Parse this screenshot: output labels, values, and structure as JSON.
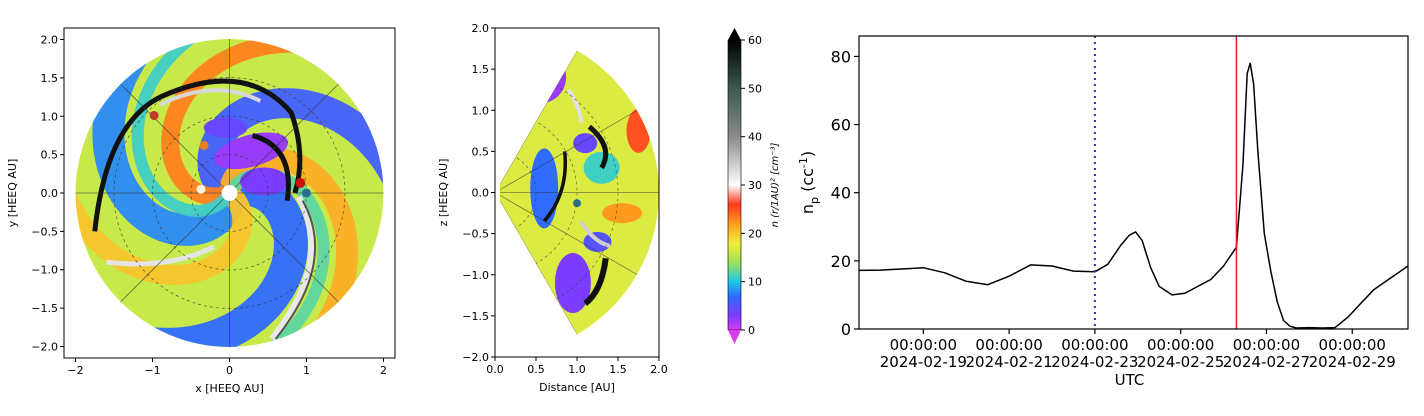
{
  "chart_data": [
    {
      "type": "heatmap",
      "title": "",
      "xlabel": "x [HEEQ AU]",
      "ylabel": "y [HEEQ AU]",
      "xlim": [
        -2.15,
        2.15
      ],
      "ylim": [
        -2.15,
        2.15
      ],
      "xticks": [
        "−2",
        "−1",
        "0",
        "1",
        "2"
      ],
      "xtick_values": [
        -2,
        -1,
        0,
        1,
        2
      ],
      "yticks": [
        "−2.0",
        "−1.5",
        "−1.0",
        "−0.5",
        "0.0",
        "0.5",
        "1.0",
        "1.5",
        "2.0"
      ],
      "ytick_values": [
        -2,
        -1.5,
        -1,
        -0.5,
        0,
        0.5,
        1,
        1.5,
        2
      ],
      "domain_radius": 2.0,
      "grid": true,
      "markers": [
        {
          "x": -0.37,
          "y": 0.05,
          "color": "#f5f5dc"
        },
        {
          "x": -0.33,
          "y": 0.62,
          "color": "#e67e22"
        },
        {
          "x": -0.98,
          "y": 1.01,
          "color": "#c0392b"
        },
        {
          "x": 0.92,
          "y": 0.13,
          "color": "#cc1111"
        },
        {
          "x": 1.0,
          "y": 0.0,
          "color": "#2a6f8a"
        }
      ]
    },
    {
      "type": "heatmap",
      "title": "",
      "xlabel": "Distance [AU]",
      "ylabel": "z [HEEQ AU]",
      "xlim": [
        0,
        2.0
      ],
      "ylim": [
        -2.0,
        2.0
      ],
      "xticks": [
        "0.0",
        "0.5",
        "1.0",
        "1.5",
        "2.0"
      ],
      "xtick_values": [
        0,
        0.5,
        1,
        1.5,
        2
      ],
      "yticks": [
        "−2.0",
        "−1.5",
        "−1.0",
        "−0.5",
        "0.0",
        "0.5",
        "1.0",
        "1.5",
        "2.0"
      ],
      "ytick_values": [
        -2,
        -1.5,
        -1,
        -0.5,
        0,
        0.5,
        1,
        1.5,
        2
      ],
      "wedge_half_angle_deg": 60,
      "grid": true,
      "markers": [
        {
          "x": 1.0,
          "y": -0.13,
          "color": "#2a6f8a"
        }
      ]
    },
    {
      "type": "colorbar",
      "label": "n (r/1AU)² [cm⁻³]",
      "range": [
        0,
        60
      ],
      "ticks": [
        "0",
        "10",
        "20",
        "30",
        "40",
        "50",
        "60"
      ],
      "tick_values": [
        0,
        10,
        20,
        30,
        40,
        50,
        60
      ],
      "stops": [
        {
          "v": 0,
          "c": "#d83cf0"
        },
        {
          "v": 3,
          "c": "#7a3cff"
        },
        {
          "v": 7,
          "c": "#2f6bff"
        },
        {
          "v": 10,
          "c": "#20c8e8"
        },
        {
          "v": 14,
          "c": "#9ee35a"
        },
        {
          "v": 18,
          "c": "#f1ee3a"
        },
        {
          "v": 22,
          "c": "#ff9a1e"
        },
        {
          "v": 26,
          "c": "#ff3a20"
        },
        {
          "v": 30,
          "c": "#ffffff"
        },
        {
          "v": 40,
          "c": "#8a8a8a"
        },
        {
          "v": 50,
          "c": "#3c5a52"
        },
        {
          "v": 60,
          "c": "#000000"
        }
      ]
    },
    {
      "type": "line",
      "title": "",
      "xlabel": "UTC",
      "ylabel": "n_p (cc⁻¹)",
      "ylabel_main": "n",
      "ylabel_sub": "p",
      "ylabel_rest": " (cc",
      "ylabel_sup": "-1",
      "ylabel_close": ")",
      "x_start": "2024-02-17 12:00",
      "xlim_days": [
        0,
        12.8
      ],
      "ylim": [
        0,
        86
      ],
      "yticks": [
        "0",
        "20",
        "40",
        "60",
        "80"
      ],
      "ytick_values": [
        0,
        20,
        40,
        60,
        80
      ],
      "xticks": [
        {
          "d": 1.5,
          "time": "00:00:00",
          "date": "2024-02-19"
        },
        {
          "d": 3.5,
          "time": "00:00:00",
          "date": "2024-02-21"
        },
        {
          "d": 5.5,
          "time": "00:00:00",
          "date": "2024-02-23"
        },
        {
          "d": 7.5,
          "time": "00:00:00",
          "date": "2024-02-25"
        },
        {
          "d": 9.5,
          "time": "00:00:00",
          "date": "2024-02-27"
        },
        {
          "d": 11.5,
          "time": "00:00:00",
          "date": "2024-02-29"
        }
      ],
      "vlines": [
        {
          "d": 5.5,
          "color": "#2233cc",
          "style": "dotted"
        },
        {
          "d": 8.8,
          "color": "#e02020",
          "style": "solid"
        }
      ],
      "series": [
        {
          "color": "#000000",
          "x": [
            0,
            0.5,
            1.0,
            1.5,
            2.0,
            2.5,
            3.0,
            3.5,
            4.0,
            4.5,
            5.0,
            5.5,
            5.8,
            6.1,
            6.3,
            6.45,
            6.6,
            6.8,
            7.0,
            7.3,
            7.6,
            7.9,
            8.2,
            8.5,
            8.8,
            8.95,
            9.05,
            9.12,
            9.2,
            9.3,
            9.45,
            9.6,
            9.75,
            9.9,
            10.05,
            10.2,
            10.5,
            10.8,
            11.1,
            11.4,
            11.7,
            12.0,
            12.4,
            12.8
          ],
          "y": [
            17.2,
            17.3,
            17.6,
            18.0,
            16.5,
            14.0,
            13.0,
            15.5,
            18.8,
            18.5,
            17.0,
            16.8,
            19.0,
            24.5,
            27.5,
            28.5,
            26.0,
            18.0,
            12.5,
            10.0,
            10.5,
            12.5,
            14.5,
            18.5,
            24.0,
            48.0,
            75.0,
            78.0,
            72.0,
            52.0,
            28.0,
            17.0,
            8.0,
            2.5,
            0.8,
            0.3,
            0.4,
            0.3,
            0.4,
            3.5,
            7.5,
            11.5,
            15.0,
            18.5
          ]
        }
      ]
    }
  ]
}
